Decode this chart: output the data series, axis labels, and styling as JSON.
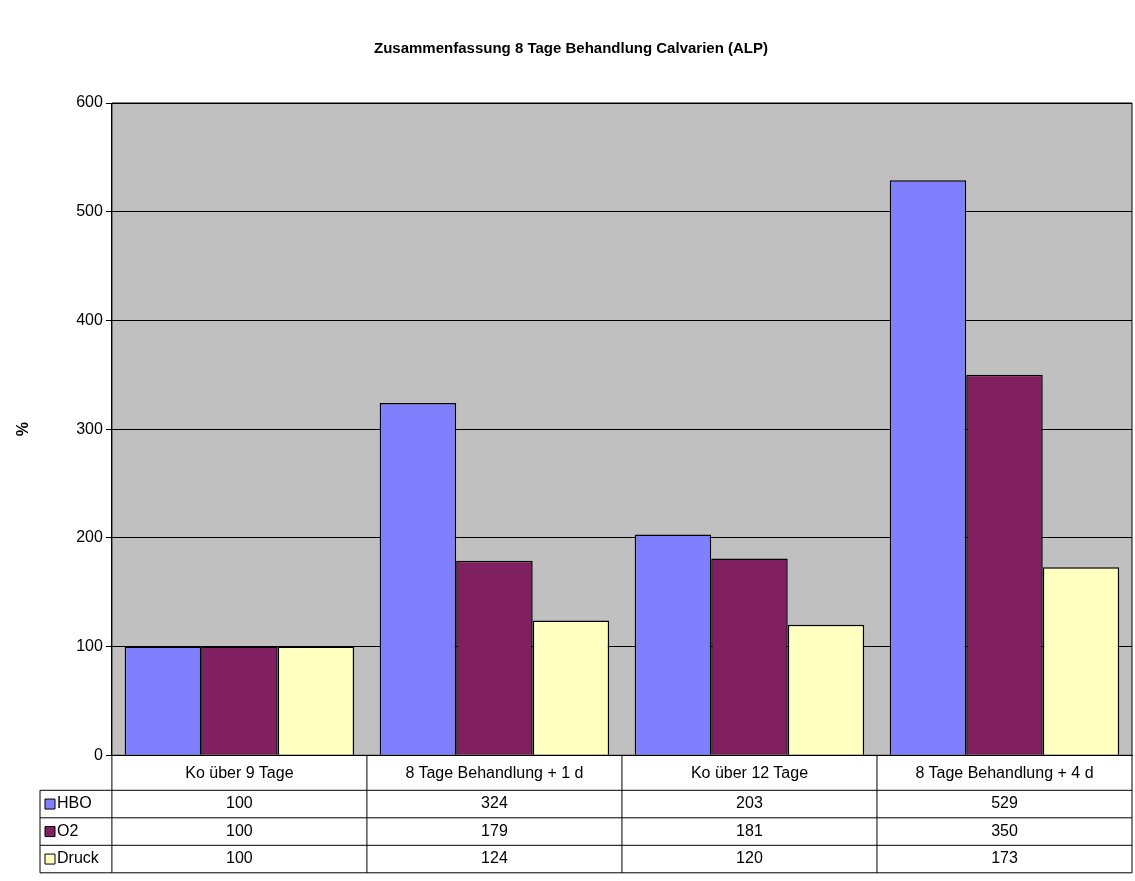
{
  "chart_data": {
    "type": "bar",
    "title": "Zusammenfassung 8 Tage Behandlung Calvarien (ALP)",
    "ylabel": "%",
    "categories": [
      "Ko über 9 Tage",
      "8 Tage Behandlung + 1 d",
      "Ko über 12 Tage",
      "8 Tage Behandlung + 4 d"
    ],
    "series": [
      {
        "name": "HBO",
        "color": "#8080ff",
        "values": [
          100,
          324,
          203,
          529
        ]
      },
      {
        "name": "O2",
        "color": "#802060",
        "values": [
          100,
          179,
          181,
          350
        ]
      },
      {
        "name": "Druck",
        "color": "#ffffc0",
        "values": [
          100,
          124,
          120,
          173
        ]
      }
    ],
    "ylim": [
      0,
      600
    ],
    "yticks": [
      0,
      100,
      200,
      300,
      400,
      500,
      600
    ],
    "grid": "y",
    "legend": "bottom",
    "data_labels": true
  }
}
